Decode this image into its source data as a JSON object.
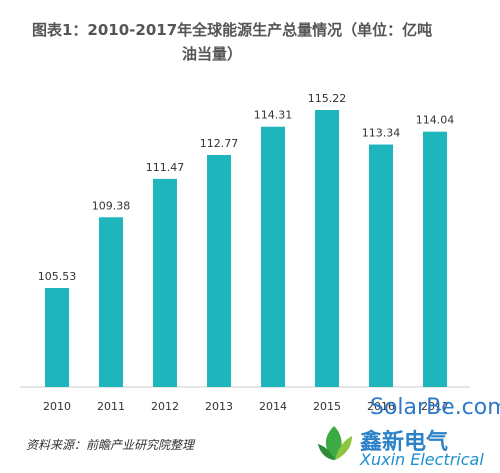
{
  "chart_data": {
    "type": "bar",
    "title": "图表1：2010-2017年全球能源生产总量情况（单位：亿吨",
    "title_line2": "油当量）",
    "categories": [
      "2010",
      "2011",
      "2012",
      "2013",
      "2014",
      "2015",
      "2016",
      "2017"
    ],
    "values": [
      105.53,
      109.38,
      111.47,
      112.77,
      114.31,
      115.22,
      113.34,
      114.04
    ],
    "labels": [
      "105.53",
      "109.38",
      "111.47",
      "112.77",
      "114.31",
      "115.22",
      "113.34",
      "114.04"
    ],
    "bar_color": "#1fb5bd",
    "xlabel": "",
    "ylabel": ""
  },
  "source": "资料来源：前瞻产业研究院整理",
  "watermark": {
    "site": "SolarBe.com",
    "brand_cn": "鑫新电气",
    "brand_en": "Xuxin Electrical"
  }
}
